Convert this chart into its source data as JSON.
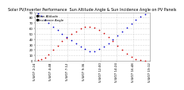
{
  "title": "Solar PV/Inverter Performance  Sun Altitude Angle & Sun Incidence Angle on PV Panels",
  "fig_bg": "#ffffff",
  "plot_bg": "#ffffff",
  "grid_color": "#aaaaaa",
  "red_color": "#cc0000",
  "blue_color": "#0000cc",
  "red_label": "Sun Altitude",
  "blue_label": "Incidence Angle",
  "xlim": [
    0,
    1
  ],
  "ylim": [
    0,
    90
  ],
  "yticks": [
    0,
    10,
    20,
    30,
    40,
    50,
    60,
    70,
    80,
    90
  ],
  "red_x": [
    0.03,
    0.06,
    0.09,
    0.12,
    0.16,
    0.2,
    0.24,
    0.28,
    0.32,
    0.36,
    0.4,
    0.44,
    0.48,
    0.52,
    0.56,
    0.6,
    0.64,
    0.68,
    0.72,
    0.76,
    0.8,
    0.84,
    0.88,
    0.92,
    0.96
  ],
  "red_y": [
    1,
    3,
    6,
    12,
    20,
    28,
    36,
    43,
    50,
    55,
    60,
    63,
    63,
    61,
    57,
    51,
    44,
    36,
    28,
    20,
    13,
    7,
    3,
    1,
    0
  ],
  "blue_x": [
    0.03,
    0.06,
    0.09,
    0.12,
    0.16,
    0.2,
    0.24,
    0.28,
    0.32,
    0.36,
    0.4,
    0.44,
    0.48,
    0.52,
    0.56,
    0.6,
    0.64,
    0.68,
    0.72,
    0.76,
    0.8,
    0.84,
    0.88,
    0.92,
    0.96
  ],
  "blue_y": [
    88,
    83,
    76,
    70,
    63,
    57,
    50,
    44,
    38,
    32,
    27,
    22,
    18,
    18,
    22,
    27,
    33,
    40,
    47,
    55,
    62,
    69,
    76,
    82,
    87
  ],
  "xtick_labels": [
    "5/4/07 2:24",
    "5/4/07 4:48",
    "5/4/07 7:12",
    "5/4/07 9:36",
    "5/4/07 12:00",
    "5/4/07 14:24",
    "5/4/07 16:48",
    "5/4/07 19:12"
  ],
  "xtick_pos": [
    0.0,
    0.143,
    0.286,
    0.429,
    0.571,
    0.714,
    0.857,
    1.0
  ],
  "title_fontsize": 3.5,
  "tick_fontsize": 2.8,
  "marker_size": 1.5,
  "legend_fontsize": 2.8,
  "text_color": "#000000"
}
